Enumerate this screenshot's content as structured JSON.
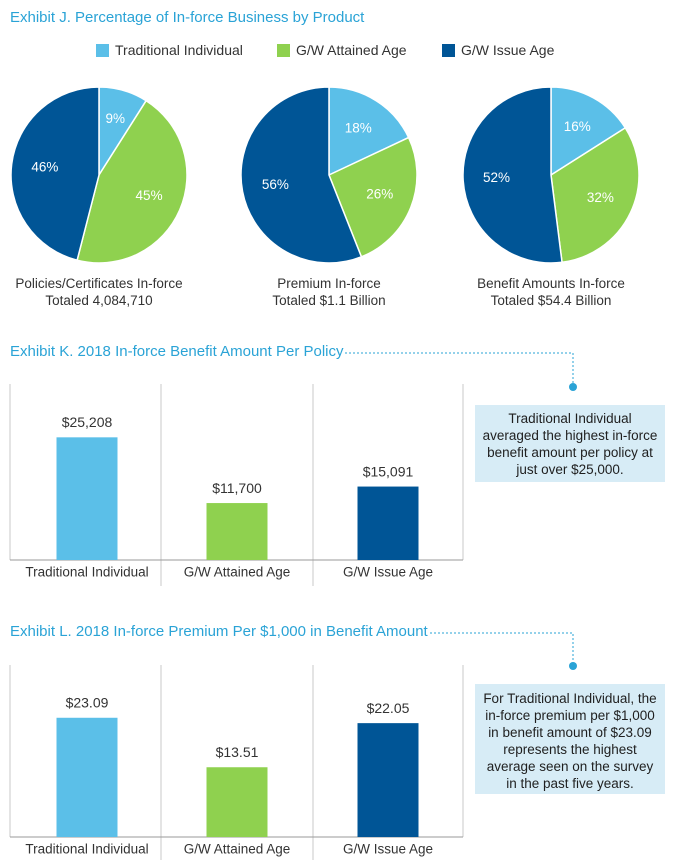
{
  "exhibit_j": {
    "title": "Exhibit J. Percentage of In-force Business by Product",
    "legend": [
      {
        "label": "Traditional Individual",
        "color": "#5bbfe8"
      },
      {
        "label": "G/W Attained Age",
        "color": "#8fd14f"
      },
      {
        "label": "G/W Issue Age",
        "color": "#005596"
      }
    ]
  },
  "exhibit_k": {
    "title": "Exhibit K. 2018 In-force Benefit Amount Per Policy",
    "callout": "Traditional Individual averaged the highest in-force benefit amount per policy at just over $25,000."
  },
  "exhibit_l": {
    "title": "Exhibit L. 2018 In-force Premium Per $1,000 in Benefit Amount",
    "callout": "For Traditional Individual, the in-force premium per $1,000 in benefit amount of $23.09 represents the highest average seen on the survey in the past five years."
  },
  "chart_data": [
    {
      "type": "pie",
      "caption_line1": "Policies/Certificates In-force",
      "caption_line2": "Totaled 4,084,710",
      "slices": [
        {
          "label": "Traditional Individual",
          "value": 9,
          "display": "9%",
          "color": "#5bbfe8"
        },
        {
          "label": "G/W Attained Age",
          "value": 45,
          "display": "45%",
          "color": "#8fd14f"
        },
        {
          "label": "G/W Issue Age",
          "value": 46,
          "display": "46%",
          "color": "#005596"
        }
      ]
    },
    {
      "type": "pie",
      "caption_line1": "Premium In-force",
      "caption_line2": "Totaled $1.1 Billion",
      "slices": [
        {
          "label": "Traditional Individual",
          "value": 18,
          "display": "18%",
          "color": "#5bbfe8"
        },
        {
          "label": "G/W Attained Age",
          "value": 26,
          "display": "26%",
          "color": "#8fd14f"
        },
        {
          "label": "G/W Issue Age",
          "value": 56,
          "display": "56%",
          "color": "#005596"
        }
      ]
    },
    {
      "type": "pie",
      "caption_line1": "Benefit Amounts In-force",
      "caption_line2": "Totaled $54.4 Billion",
      "slices": [
        {
          "label": "Traditional Individual",
          "value": 16,
          "display": "16%",
          "color": "#5bbfe8"
        },
        {
          "label": "G/W Attained Age",
          "value": 32,
          "display": "32%",
          "color": "#8fd14f"
        },
        {
          "label": "G/W Issue Age",
          "value": 52,
          "display": "52%",
          "color": "#005596"
        }
      ]
    },
    {
      "type": "bar",
      "categories": [
        "Traditional Individual",
        "G/W Attained Age",
        "G/W Issue Age"
      ],
      "values": [
        25208,
        11700,
        15091
      ],
      "labels": [
        "$25,208",
        "$11,700",
        "$15,091"
      ],
      "colors": [
        "#5bbfe8",
        "#8fd14f",
        "#005596"
      ],
      "ylim": [
        0,
        30000
      ],
      "grid": false
    },
    {
      "type": "bar",
      "categories": [
        "Traditional Individual",
        "G/W Attained Age",
        "G/W Issue Age"
      ],
      "values": [
        23.09,
        13.51,
        22.05
      ],
      "labels": [
        "$23.09",
        "$13.51",
        "$22.05"
      ],
      "colors": [
        "#5bbfe8",
        "#8fd14f",
        "#005596"
      ],
      "ylim": [
        0,
        27.5
      ],
      "grid": false
    }
  ]
}
